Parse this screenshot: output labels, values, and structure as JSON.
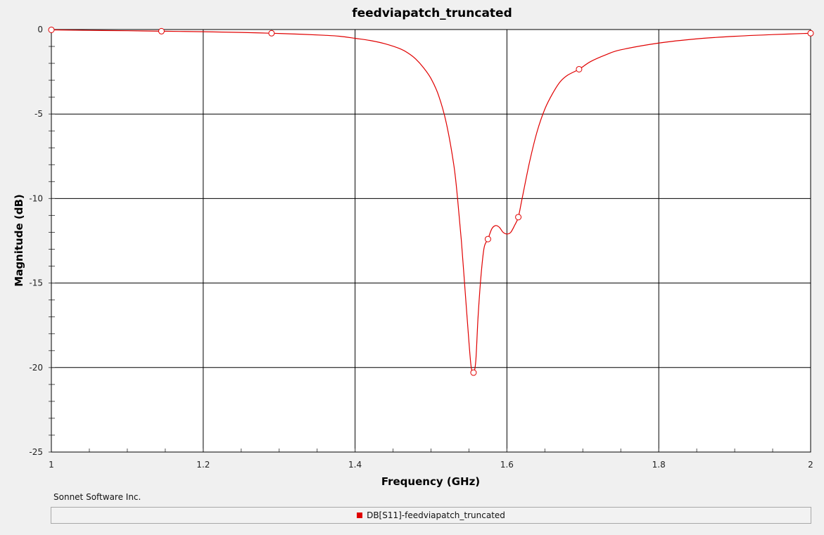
{
  "chart_data": {
    "type": "line",
    "title": "feedviapatch_truncated",
    "xlabel": "Frequency (GHz)",
    "ylabel": "Magnitude (dB)",
    "xlim": [
      1.0,
      2.0
    ],
    "ylim": [
      -25,
      0
    ],
    "x_ticks": [
      "1",
      "1.2",
      "1.4",
      "1.6",
      "1.8",
      "2"
    ],
    "y_ticks": [
      "0",
      "-5",
      "-10",
      "-15",
      "-20",
      "-25"
    ],
    "grid": true,
    "legend_position": "bottom",
    "series": [
      {
        "name": "DB[S11]-feedviapatch_truncated",
        "color": "#e00000",
        "x": [
          1.0,
          1.05,
          1.1,
          1.145,
          1.2,
          1.25,
          1.29,
          1.33,
          1.36,
          1.38,
          1.4,
          1.42,
          1.44,
          1.46,
          1.47,
          1.48,
          1.49,
          1.5,
          1.51,
          1.52,
          1.53,
          1.535,
          1.54,
          1.545,
          1.55,
          1.553,
          1.556,
          1.559,
          1.562,
          1.566,
          1.57,
          1.575,
          1.58,
          1.585,
          1.59,
          1.595,
          1.6,
          1.605,
          1.61,
          1.615,
          1.62,
          1.63,
          1.64,
          1.65,
          1.66,
          1.67,
          1.68,
          1.695,
          1.71,
          1.73,
          1.75,
          1.8,
          1.85,
          1.9,
          1.95,
          2.0
        ],
        "y": [
          -0.02,
          -0.05,
          -0.07,
          -0.1,
          -0.13,
          -0.17,
          -0.22,
          -0.28,
          -0.34,
          -0.4,
          -0.52,
          -0.65,
          -0.85,
          -1.15,
          -1.4,
          -1.75,
          -2.25,
          -2.9,
          -3.9,
          -5.5,
          -8.0,
          -10.0,
          -12.5,
          -15.5,
          -18.5,
          -20.0,
          -20.3,
          -19.6,
          -17.0,
          -14.5,
          -12.9,
          -12.4,
          -11.8,
          -11.6,
          -11.7,
          -12.0,
          -12.1,
          -12.0,
          -11.6,
          -11.1,
          -10.0,
          -7.8,
          -6.0,
          -4.7,
          -3.8,
          -3.1,
          -2.7,
          -2.35,
          -1.9,
          -1.5,
          -1.2,
          -0.8,
          -0.55,
          -0.4,
          -0.3,
          -0.22
        ],
        "marker_x": [
          1.0,
          1.145,
          1.29,
          1.556,
          1.575,
          1.615,
          1.695,
          2.0
        ],
        "marker_y": [
          -0.02,
          -0.1,
          -0.22,
          -20.3,
          -12.4,
          -11.1,
          -2.35,
          -0.22
        ]
      }
    ]
  },
  "footer": {
    "copyright": "Sonnet Software Inc."
  }
}
